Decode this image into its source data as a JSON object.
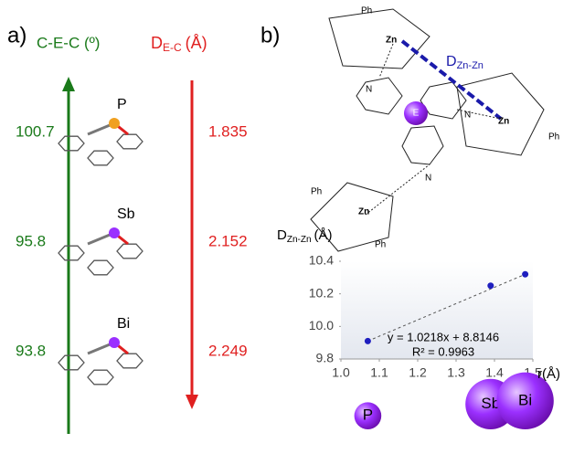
{
  "panel_a": {
    "label": "a)",
    "angle_header": "C-E-C (º)",
    "distance_header": "D",
    "distance_sub": "E-C",
    "distance_unit": "(Å)",
    "rows": [
      {
        "element": "P",
        "angle": "100.7",
        "distance": "1.835"
      },
      {
        "element": "Sb",
        "angle": "95.8",
        "distance": "2.152"
      },
      {
        "element": "Bi",
        "angle": "93.8",
        "distance": "2.249"
      }
    ]
  },
  "panel_b": {
    "label": "b)",
    "distance_main": "D",
    "distance_sub": "Zn-Zn",
    "zn": "Zn",
    "ph": "Ph",
    "n": "N",
    "e": "E"
  },
  "chart_data": {
    "type": "scatter",
    "ylabel": "D",
    "ylabel_sub": "Zn-Zn",
    "ylabel_unit": "(Å)",
    "xlabel": "r(Å)",
    "x": [
      1.07,
      1.39,
      1.48
    ],
    "values": [
      9.91,
      10.25,
      10.32
    ],
    "color": "#1f1fbf",
    "xlim": [
      1.0,
      1.5
    ],
    "ylim": [
      9.8,
      10.4
    ],
    "xticks": [
      {
        "value": 1.0,
        "label": "1.0"
      },
      1.1,
      1.2,
      1.3,
      1.4,
      {
        "value": 1.5,
        "label": "1.5"
      }
    ],
    "yticks": [
      9.8,
      {
        "value": 10.0,
        "label": "10.0"
      },
      10.2,
      10.4
    ],
    "equation": "y = 1.0218x + 8.8146",
    "r_squared": "R² = 0.9963",
    "point_labels": [
      "P",
      "Sb",
      "Bi"
    ]
  }
}
